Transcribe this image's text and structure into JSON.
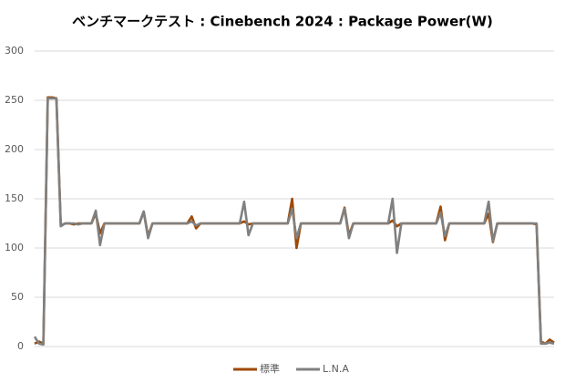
{
  "chart_data": {
    "type": "line",
    "title": "ベンチマークテスト : Cinebench 2024 : Package Power(W)",
    "categories": [
      null,
      null,
      null,
      null,
      null,
      null,
      null,
      null,
      null,
      null,
      null,
      null,
      null,
      null,
      null,
      null,
      null,
      null,
      null,
      null,
      null,
      null,
      null,
      null,
      null,
      null,
      null,
      null,
      null,
      null,
      null,
      null,
      null,
      null,
      null,
      null,
      null,
      null,
      null,
      null,
      null,
      null,
      null,
      null,
      null,
      null,
      null,
      null,
      null,
      null,
      null,
      null,
      null,
      null,
      null,
      null,
      null,
      null,
      null,
      null,
      null,
      null,
      null,
      null,
      null,
      null,
      null,
      null,
      null,
      null,
      null,
      null,
      null,
      null,
      null,
      null,
      null,
      null,
      null,
      null,
      null,
      null,
      null,
      null,
      null,
      null,
      null,
      null,
      null,
      null,
      null,
      null,
      null,
      null,
      null,
      null,
      null,
      null,
      null,
      null,
      null,
      null,
      null,
      null,
      null,
      null,
      null,
      null,
      null,
      null,
      null,
      null,
      null,
      null,
      null,
      null,
      null,
      null,
      null,
      null
    ],
    "series": [
      {
        "name": "標準",
        "color": "#9e4a06",
        "values": [
          3,
          5,
          3,
          253,
          253,
          252,
          123,
          125,
          125,
          124,
          125,
          125,
          125,
          125,
          135,
          115,
          125,
          125,
          125,
          125,
          125,
          125,
          125,
          125,
          125,
          137,
          112,
          125,
          125,
          125,
          125,
          125,
          125,
          125,
          125,
          125,
          132,
          120,
          125,
          125,
          125,
          125,
          125,
          125,
          125,
          125,
          125,
          125,
          127,
          124,
          125,
          125,
          125,
          125,
          125,
          125,
          125,
          125,
          125,
          150,
          100,
          125,
          125,
          125,
          125,
          125,
          125,
          125,
          125,
          125,
          125,
          141,
          113,
          125,
          125,
          125,
          125,
          125,
          125,
          125,
          125,
          125,
          128,
          122,
          125,
          125,
          125,
          125,
          125,
          125,
          125,
          125,
          125,
          142,
          108,
          125,
          125,
          125,
          125,
          125,
          125,
          125,
          125,
          125,
          135,
          106,
          125,
          125,
          125,
          125,
          125,
          125,
          125,
          125,
          125,
          124,
          5,
          3,
          7,
          4
        ]
      },
      {
        "name": "L.N.A",
        "color": "#808080",
        "values": [
          10,
          3,
          2,
          252,
          252,
          252,
          122,
          125,
          125,
          125,
          124,
          125,
          125,
          125,
          138,
          103,
          125,
          125,
          125,
          125,
          125,
          125,
          125,
          125,
          125,
          137,
          110,
          125,
          125,
          125,
          125,
          125,
          125,
          125,
          125,
          125,
          127,
          123,
          125,
          125,
          125,
          125,
          125,
          125,
          125,
          125,
          125,
          125,
          147,
          113,
          125,
          125,
          125,
          125,
          125,
          125,
          125,
          125,
          125,
          140,
          110,
          125,
          125,
          125,
          125,
          125,
          125,
          125,
          125,
          125,
          125,
          140,
          110,
          125,
          125,
          125,
          125,
          125,
          125,
          125,
          125,
          125,
          150,
          95,
          125,
          125,
          125,
          125,
          125,
          125,
          125,
          125,
          125,
          136,
          112,
          125,
          125,
          125,
          125,
          125,
          125,
          125,
          125,
          125,
          147,
          107,
          125,
          125,
          125,
          125,
          125,
          125,
          125,
          125,
          125,
          125,
          3,
          3,
          4,
          3
        ]
      }
    ],
    "ylim": [
      0,
      300
    ],
    "yticks": [
      0,
      50,
      100,
      150,
      200,
      250,
      300
    ],
    "grid": true,
    "legend": "bottom"
  }
}
